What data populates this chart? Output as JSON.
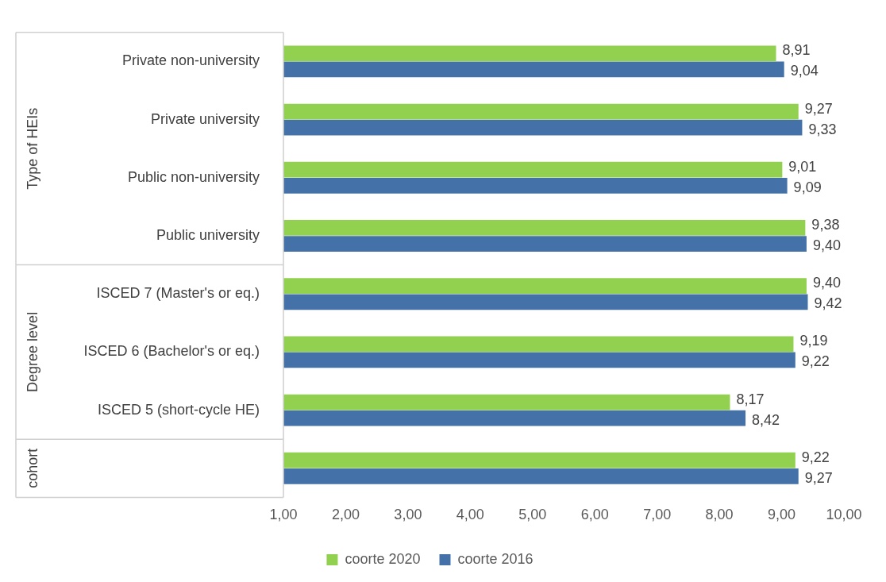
{
  "chart_data": {
    "type": "bar",
    "orientation": "horizontal",
    "categories": [
      "Private non-university",
      "Private university",
      "Public non-university",
      "Public university",
      "ISCED 7 (Master's or eq.)",
      "ISCED 6 (Bachelor's or eq.)",
      "ISCED 5 (short-cycle HE)",
      null
    ],
    "series": [
      {
        "name": "coorte 2020",
        "color": "#92d050",
        "values": [
          8.91,
          9.27,
          9.01,
          9.38,
          9.4,
          9.19,
          8.17,
          9.22
        ],
        "value_labels": [
          "8,91",
          "9,27",
          "9,01",
          "9,38",
          "9,40",
          "9,19",
          "8,17",
          "9,22"
        ]
      },
      {
        "name": "coorte 2016",
        "color": "#4472a8",
        "values": [
          9.04,
          9.33,
          9.09,
          9.4,
          9.42,
          9.22,
          8.42,
          9.27
        ],
        "value_labels": [
          "9,04",
          "9,33",
          "9,09",
          "9,40",
          "9,42",
          "9,22",
          "8,42",
          "9,27"
        ]
      }
    ],
    "xlim": [
      1,
      10
    ],
    "xticks": [
      {
        "value": 1,
        "label": "1,00"
      },
      {
        "value": 2,
        "label": "2,00"
      },
      {
        "value": 3,
        "label": "3,00"
      },
      {
        "value": 4,
        "label": "4,00"
      },
      {
        "value": 5,
        "label": "5,00"
      },
      {
        "value": 6,
        "label": "6,00"
      },
      {
        "value": 7,
        "label": "7,00"
      },
      {
        "value": 8,
        "label": "8,00"
      },
      {
        "value": 9,
        "label": "9,00"
      },
      {
        "value": 10,
        "label": "10,00"
      }
    ],
    "annotations": [
      "Type of HEIs",
      "Degree level",
      "cohort"
    ],
    "grid": false,
    "legend": "bottom"
  }
}
